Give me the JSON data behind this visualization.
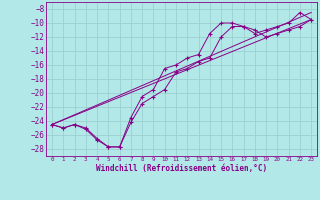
{
  "xlabel": "Windchill (Refroidissement éolien,°C)",
  "background_color": "#b3e8e8",
  "grid_color": "#99cccc",
  "line_color": "#880088",
  "xlim": [
    -0.5,
    23.5
  ],
  "ylim": [
    -29,
    -7
  ],
  "yticks": [
    -28,
    -26,
    -24,
    -22,
    -20,
    -18,
    -16,
    -14,
    -12,
    -10,
    -8
  ],
  "xticks": [
    0,
    1,
    2,
    3,
    4,
    5,
    6,
    7,
    8,
    9,
    10,
    11,
    12,
    13,
    14,
    15,
    16,
    17,
    18,
    19,
    20,
    21,
    22,
    23
  ],
  "series1_x": [
    0,
    1,
    2,
    3,
    4,
    5,
    6,
    7,
    8,
    9,
    10,
    11,
    12,
    13,
    14,
    15,
    16,
    17,
    18,
    19,
    20,
    21,
    22,
    23
  ],
  "series1_y": [
    -24.5,
    -25.0,
    -24.5,
    -25.0,
    -26.5,
    -27.7,
    -27.7,
    -23.5,
    -20.5,
    -19.5,
    -16.5,
    -16.0,
    -15.0,
    -14.5,
    -11.5,
    -10.0,
    -10.0,
    -10.5,
    -11.5,
    -11.0,
    -10.5,
    -10.0,
    -8.5,
    -9.5
  ],
  "series2_x": [
    0,
    1,
    2,
    3,
    4,
    5,
    6,
    7,
    8,
    9,
    10,
    11,
    12,
    13,
    14,
    15,
    16,
    17,
    18,
    19,
    20,
    21,
    22,
    23
  ],
  "series2_y": [
    -24.5,
    -25.0,
    -24.5,
    -25.2,
    -26.7,
    -27.7,
    -27.7,
    -24.2,
    -21.5,
    -20.5,
    -19.5,
    -17.0,
    -16.5,
    -15.5,
    -15.0,
    -12.0,
    -10.5,
    -10.5,
    -11.0,
    -12.0,
    -11.5,
    -11.0,
    -10.5,
    -9.5
  ],
  "series3_x": [
    0,
    23
  ],
  "series3_y": [
    -24.5,
    -8.5
  ],
  "series4_x": [
    0,
    23
  ],
  "series4_y": [
    -24.5,
    -9.5
  ]
}
